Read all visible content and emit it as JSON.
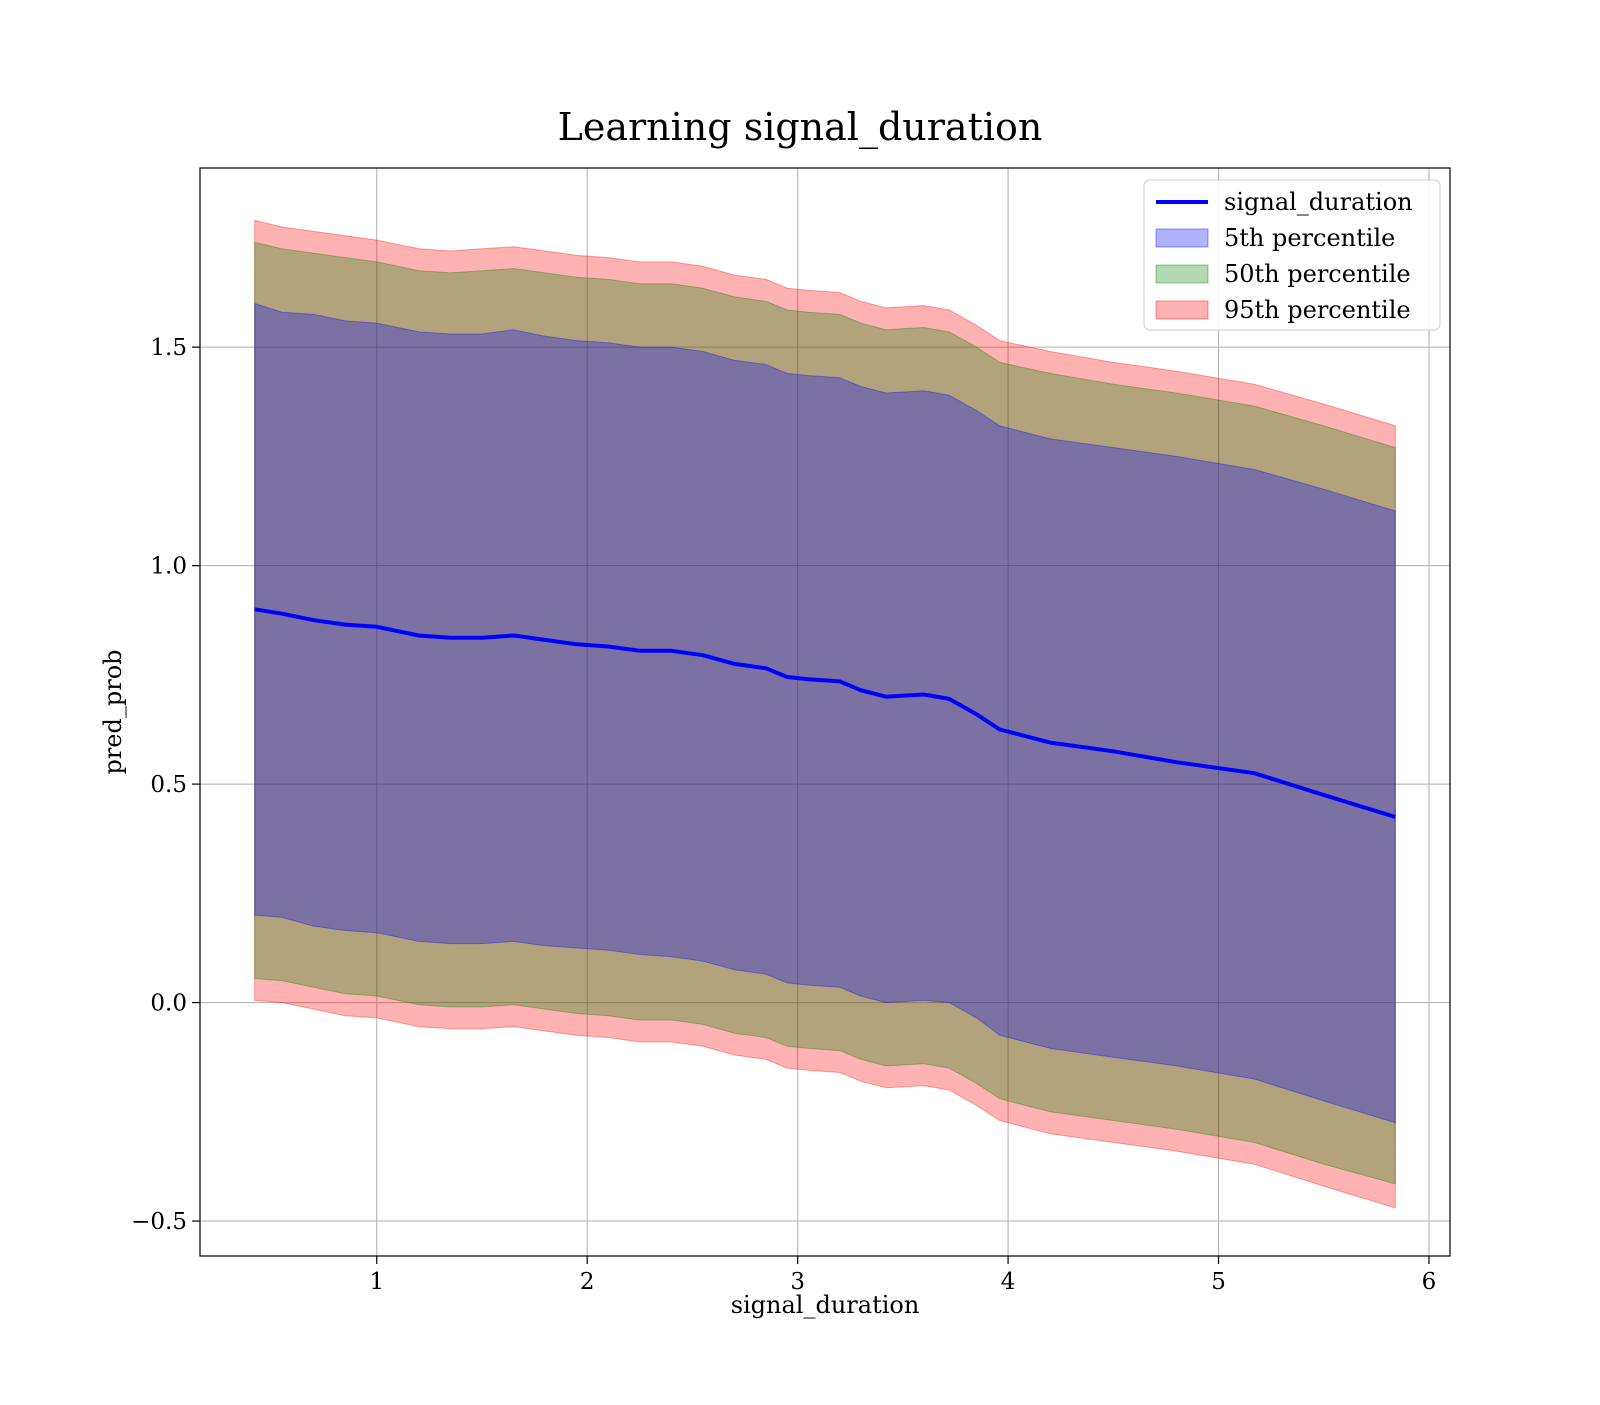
{
  "chart_data": {
    "type": "area",
    "title": "Learning signal_duration",
    "xlabel": "signal_duration",
    "ylabel": "pred_prob",
    "xlim": [
      0.16,
      6.1
    ],
    "ylim": [
      -0.58,
      1.91
    ],
    "xticks": [
      1,
      2,
      3,
      4,
      5,
      6
    ],
    "xtick_labels": [
      "1",
      "2",
      "3",
      "4",
      "5",
      "6"
    ],
    "yticks": [
      -0.5,
      0.0,
      0.5,
      1.0,
      1.5
    ],
    "ytick_labels": [
      "−0.5",
      "0.0",
      "0.5",
      "1.0",
      "1.5"
    ],
    "grid": true,
    "legend_position": "top-right",
    "x": [
      0.42,
      0.55,
      0.7,
      0.85,
      1.0,
      1.1,
      1.2,
      1.35,
      1.5,
      1.65,
      1.8,
      1.95,
      2.1,
      2.25,
      2.4,
      2.55,
      2.7,
      2.85,
      2.95,
      3.05,
      3.2,
      3.3,
      3.42,
      3.6,
      3.72,
      3.85,
      3.96,
      4.2,
      4.5,
      4.8,
      5.17,
      5.5,
      5.84
    ],
    "series": [
      {
        "name": "signal_duration",
        "kind": "line",
        "color": "#0000ff",
        "values": [
          0.9,
          0.89,
          0.875,
          0.865,
          0.86,
          0.85,
          0.84,
          0.835,
          0.835,
          0.84,
          0.83,
          0.82,
          0.815,
          0.805,
          0.805,
          0.795,
          0.775,
          0.765,
          0.745,
          0.74,
          0.735,
          0.715,
          0.7,
          0.705,
          0.695,
          0.66,
          0.625,
          0.595,
          0.575,
          0.55,
          0.525,
          0.475,
          0.425
        ]
      },
      {
        "name": "5th percentile",
        "kind": "band",
        "color": "#0000ff",
        "upper": [
          1.6,
          1.58,
          1.575,
          1.56,
          1.555,
          1.545,
          1.535,
          1.53,
          1.53,
          1.54,
          1.525,
          1.515,
          1.51,
          1.5,
          1.5,
          1.49,
          1.47,
          1.46,
          1.44,
          1.435,
          1.43,
          1.41,
          1.395,
          1.4,
          1.39,
          1.355,
          1.32,
          1.29,
          1.27,
          1.25,
          1.22,
          1.175,
          1.125
        ],
        "lower": [
          0.2,
          0.195,
          0.175,
          0.165,
          0.16,
          0.15,
          0.14,
          0.135,
          0.135,
          0.14,
          0.13,
          0.125,
          0.12,
          0.11,
          0.105,
          0.095,
          0.075,
          0.065,
          0.045,
          0.04,
          0.035,
          0.015,
          0.0,
          0.005,
          0.0,
          -0.035,
          -0.075,
          -0.105,
          -0.125,
          -0.145,
          -0.175,
          -0.225,
          -0.275
        ]
      },
      {
        "name": "50th percentile",
        "kind": "band",
        "color": "#008000",
        "upper": [
          1.74,
          1.725,
          1.715,
          1.705,
          1.695,
          1.685,
          1.675,
          1.67,
          1.675,
          1.68,
          1.67,
          1.66,
          1.655,
          1.645,
          1.645,
          1.635,
          1.615,
          1.605,
          1.585,
          1.58,
          1.575,
          1.555,
          1.54,
          1.545,
          1.535,
          1.5,
          1.465,
          1.44,
          1.415,
          1.395,
          1.365,
          1.32,
          1.27
        ],
        "lower": [
          0.055,
          0.05,
          0.035,
          0.02,
          0.015,
          0.005,
          -0.005,
          -0.01,
          -0.01,
          -0.005,
          -0.015,
          -0.025,
          -0.03,
          -0.04,
          -0.04,
          -0.05,
          -0.07,
          -0.08,
          -0.1,
          -0.105,
          -0.11,
          -0.13,
          -0.145,
          -0.14,
          -0.15,
          -0.185,
          -0.22,
          -0.25,
          -0.27,
          -0.29,
          -0.32,
          -0.37,
          -0.415
        ]
      },
      {
        "name": "95th percentile",
        "kind": "band",
        "color": "#ff0000",
        "upper": [
          1.79,
          1.775,
          1.765,
          1.755,
          1.745,
          1.735,
          1.725,
          1.72,
          1.725,
          1.73,
          1.72,
          1.71,
          1.705,
          1.695,
          1.695,
          1.685,
          1.665,
          1.655,
          1.635,
          1.63,
          1.625,
          1.605,
          1.59,
          1.595,
          1.585,
          1.55,
          1.515,
          1.49,
          1.465,
          1.445,
          1.415,
          1.37,
          1.32
        ],
        "lower": [
          0.005,
          0.0,
          -0.015,
          -0.03,
          -0.035,
          -0.045,
          -0.055,
          -0.06,
          -0.06,
          -0.055,
          -0.065,
          -0.075,
          -0.08,
          -0.09,
          -0.09,
          -0.1,
          -0.12,
          -0.13,
          -0.15,
          -0.155,
          -0.16,
          -0.18,
          -0.195,
          -0.19,
          -0.2,
          -0.235,
          -0.27,
          -0.3,
          -0.32,
          -0.34,
          -0.37,
          -0.42,
          -0.47
        ]
      }
    ]
  }
}
